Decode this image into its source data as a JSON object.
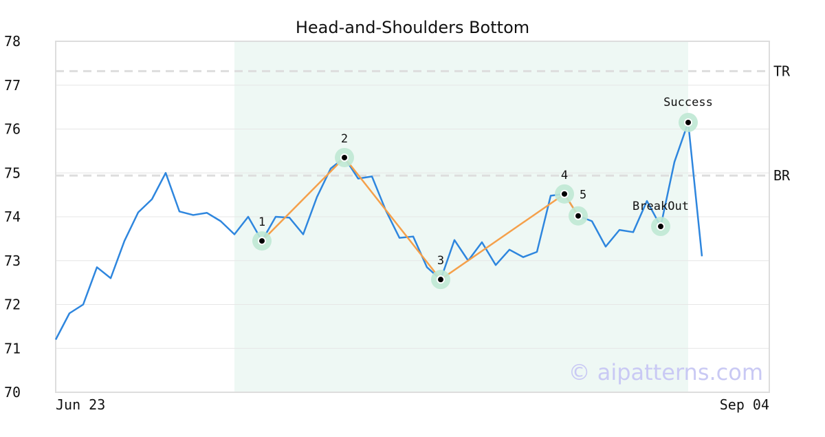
{
  "chart_data": {
    "type": "line",
    "title": "Head-and-Shoulders Bottom",
    "x_tick_labels": [
      "Jun 23",
      "Sep 04"
    ],
    "ylim": [
      70,
      78
    ],
    "y_ticks": [
      70,
      71,
      72,
      73,
      74,
      75,
      76,
      77,
      78
    ],
    "x_count": 48,
    "grid": true,
    "series": [
      {
        "color": "#2e86de",
        "values": [
          71.2,
          71.8,
          72.0,
          72.85,
          72.6,
          73.45,
          74.1,
          74.4,
          75.0,
          74.12,
          74.04,
          74.09,
          73.9,
          73.6,
          74.0,
          73.45,
          74.0,
          73.98,
          73.6,
          74.45,
          75.1,
          75.35,
          74.87,
          74.92,
          74.15,
          73.52,
          73.55,
          72.85,
          72.57,
          73.47,
          73.0,
          73.42,
          72.9,
          73.25,
          73.08,
          73.2,
          74.48,
          74.52,
          74.02,
          73.9,
          73.32,
          73.7,
          73.65,
          74.36,
          73.78,
          75.25,
          76.15,
          73.1
        ]
      }
    ],
    "pattern_window": {
      "start_index": 13,
      "end_index": 46,
      "color": "#eef8f4"
    },
    "reference_lines": [
      {
        "label": "TR",
        "value": 77.32
      },
      {
        "label": "BR",
        "value": 74.94
      }
    ],
    "pattern_points": [
      {
        "label": "1",
        "index": 15,
        "value": 73.45
      },
      {
        "label": "2",
        "index": 21,
        "value": 75.35
      },
      {
        "label": "3",
        "index": 28,
        "value": 72.57
      },
      {
        "label": "4",
        "index": 37,
        "value": 74.52
      },
      {
        "label": "5",
        "index": 38,
        "value": 74.02
      }
    ],
    "signal_points": [
      {
        "label": "BreakOut",
        "index": 44,
        "value": 73.78
      },
      {
        "label": "Success",
        "index": 46,
        "value": 76.15
      }
    ],
    "colors": {
      "price_line": "#2e86de",
      "pattern_line": "#f5a04a",
      "marker_halo": "#bfe8d4",
      "marker_dot": "#000000",
      "reference_line": "#dddddd",
      "grid": "#e6e6e6",
      "frame": "#dddddd"
    },
    "watermark": "© aipatterns.com"
  }
}
